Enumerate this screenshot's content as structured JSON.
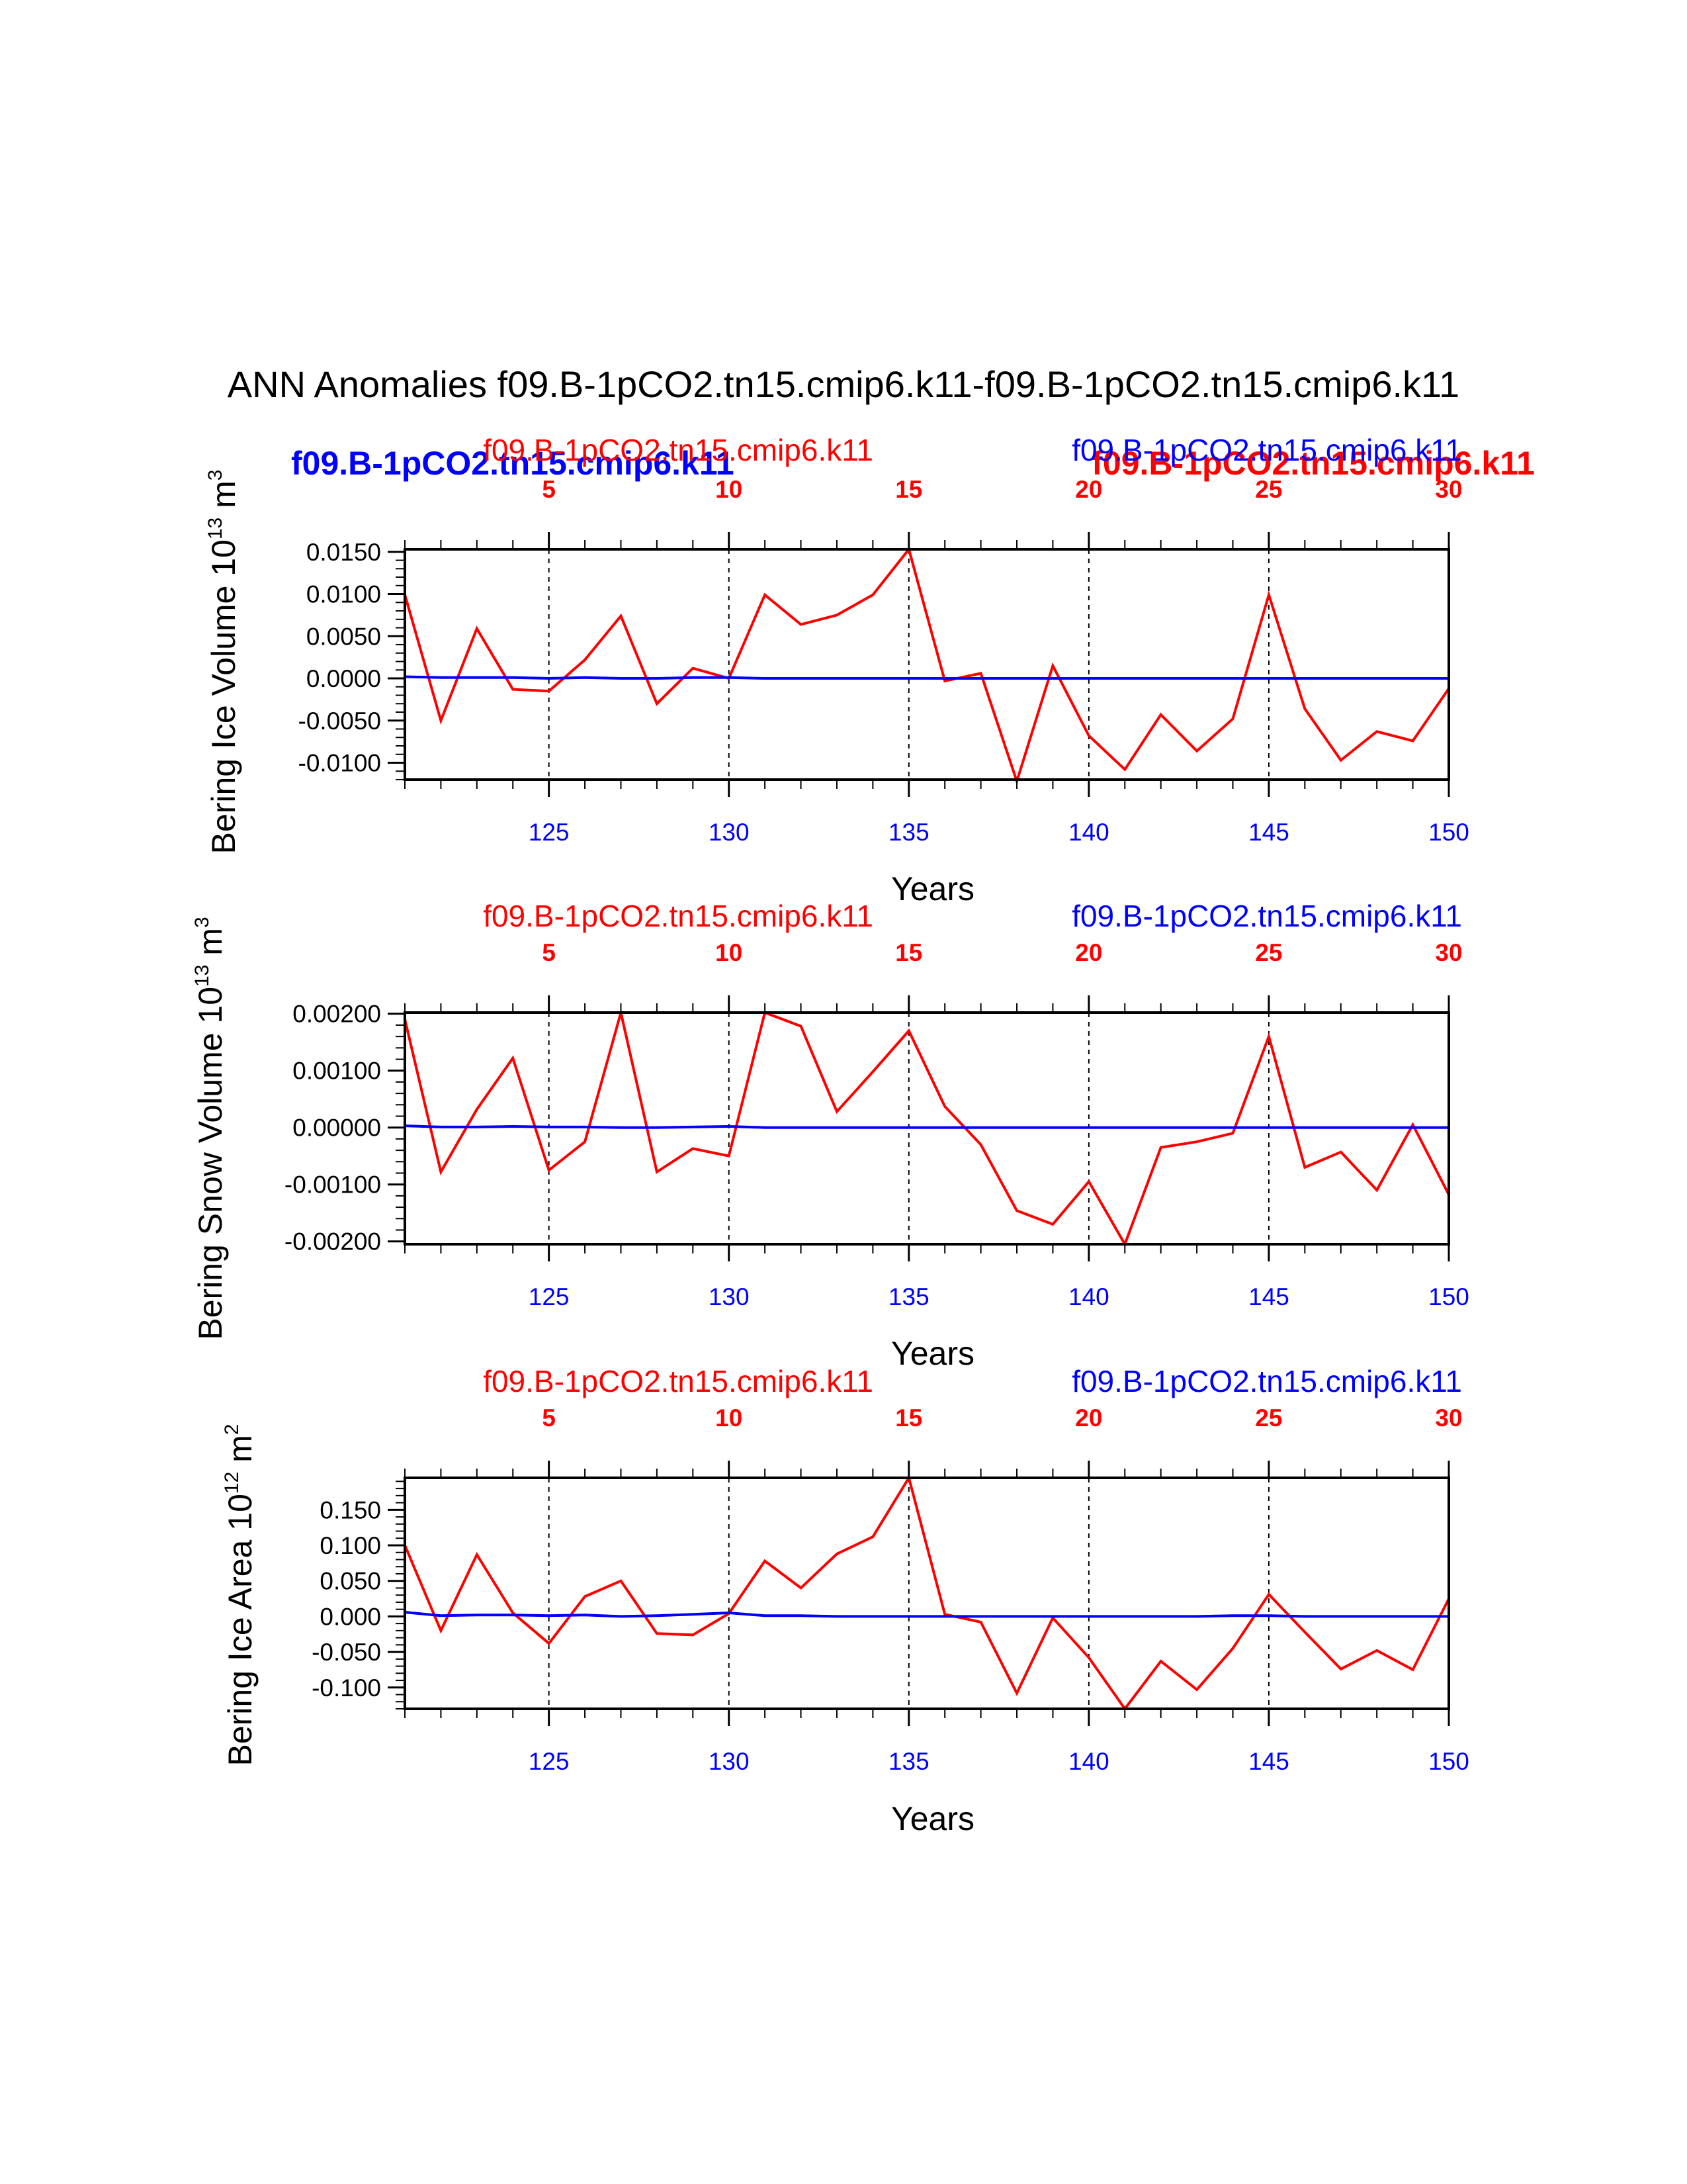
{
  "title": "ANN Anomalies f09.B-1pCO2.tn15.cmip6.k11-f09.B-1pCO2.tn15.cmip6.k11",
  "colors": {
    "red_series": "#ff0000",
    "blue_series": "#0000ff",
    "axis": "#000000"
  },
  "legend": {
    "red_label": "f09.B-1pCO2.tn15.cmip6.k11",
    "blue_label": "f09.B-1pCO2.tn15.cmip6.k11",
    "overlay_blue_label": "f09.B-1pCO2.tn15.cmip6.k11",
    "overlay_red_label": "f09.B-1pCO2.tn15.cmip6.k11"
  },
  "chart_data": [
    {
      "type": "line",
      "title": "",
      "ylabel": "Bering Ice Volume 10",
      "ylabel_exponent": "13",
      "ylabel_unit": "m",
      "ylabel_unit_exponent": "3",
      "xlabel": "Years",
      "xlim": [
        121,
        150
      ],
      "ylim": [
        -0.012,
        0.0153
      ],
      "yticks": [
        0.015,
        0.01,
        0.005,
        0.0,
        -0.005,
        -0.01
      ],
      "ytick_labels": [
        "0.0150",
        "0.0100",
        "0.0050",
        "0.0000",
        "-0.0050",
        "-0.0100"
      ],
      "yminor": 0.001,
      "xticks": [
        125,
        130,
        135,
        140,
        145,
        150
      ],
      "xtick_labels": [
        "125",
        "130",
        "135",
        "140",
        "145",
        "150"
      ],
      "top_ticks": [
        125,
        130,
        135,
        140,
        145,
        150
      ],
      "top_tick_labels": [
        "5",
        "10",
        "15",
        "20",
        "25",
        "30"
      ],
      "vlines": [
        125,
        130,
        135,
        140,
        145
      ],
      "x": [
        121,
        122,
        123,
        124,
        125,
        126,
        127,
        128,
        129,
        130,
        131,
        132,
        133,
        134,
        135,
        136,
        137,
        138,
        139,
        140,
        141,
        142,
        143,
        144,
        145,
        146,
        147,
        148,
        149,
        150
      ],
      "series": [
        {
          "name": "f09.B-1pCO2.tn15.cmip6.k11",
          "color": "#ff0000",
          "values": [
            0.0099,
            -0.005,
            0.0059,
            -0.0013,
            -0.0015,
            0.0022,
            0.0074,
            -0.003,
            0.0012,
            0.0,
            0.0099,
            0.0064,
            0.0075,
            0.0099,
            0.0153,
            -0.0003,
            0.0006,
            -0.0122,
            0.0015,
            -0.0068,
            -0.0108,
            -0.0043,
            -0.0086,
            -0.0048,
            0.0099,
            -0.0036,
            -0.0097,
            -0.0063,
            -0.0074,
            -0.0012
          ]
        },
        {
          "name": "f09.B-1pCO2.tn15.cmip6.k11",
          "color": "#0000ff",
          "values": [
            0.0002,
            0.0001,
            0.0001,
            0.0001,
            0.0,
            0.0001,
            0.0,
            0.0,
            0.0001,
            0.0001,
            0.0,
            0.0,
            0.0,
            0.0,
            0.0,
            0.0,
            0.0,
            0.0,
            0.0,
            0.0,
            0.0,
            0.0,
            0.0,
            0.0,
            0.0,
            0.0,
            0.0,
            0.0,
            0.0,
            0.0
          ]
        }
      ]
    },
    {
      "type": "line",
      "title": "",
      "ylabel": "Bering Snow Volume 10",
      "ylabel_exponent": "13",
      "ylabel_unit": "m",
      "ylabel_unit_exponent": "3",
      "xlabel": "Years",
      "xlim": [
        121,
        150
      ],
      "ylim": [
        -0.00205,
        0.00202
      ],
      "yticks": [
        0.002,
        0.001,
        0.0,
        -0.001,
        -0.002
      ],
      "ytick_labels": [
        "0.00200",
        "0.00100",
        "0.00000",
        "-0.00100",
        "-0.00200"
      ],
      "yminor": 0.0002,
      "xticks": [
        125,
        130,
        135,
        140,
        145,
        150
      ],
      "xtick_labels": [
        "125",
        "130",
        "135",
        "140",
        "145",
        "150"
      ],
      "top_ticks": [
        125,
        130,
        135,
        140,
        145,
        150
      ],
      "top_tick_labels": [
        "5",
        "10",
        "15",
        "20",
        "25",
        "30"
      ],
      "vlines": [
        125,
        130,
        135,
        140,
        145
      ],
      "x": [
        121,
        122,
        123,
        124,
        125,
        126,
        127,
        128,
        129,
        130,
        131,
        132,
        133,
        134,
        135,
        136,
        137,
        138,
        139,
        140,
        141,
        142,
        143,
        144,
        145,
        146,
        147,
        148,
        149,
        150
      ],
      "series": [
        {
          "name": "f09.B-1pCO2.tn15.cmip6.k11",
          "color": "#ff0000",
          "values": [
            0.0019,
            -0.00078,
            0.00032,
            0.00122,
            -0.00075,
            -0.00025,
            0.00202,
            -0.00078,
            -0.00037,
            -0.0005,
            0.00202,
            0.00178,
            0.00028,
            0.00098,
            0.0017,
            0.00037,
            -0.0003,
            -0.00146,
            -0.0017,
            -0.00095,
            -0.00205,
            -0.00035,
            -0.00025,
            -0.0001,
            0.0016,
            -0.0007,
            -0.00043,
            -0.0011,
            5e-05,
            -0.00118
          ]
        },
        {
          "name": "f09.B-1pCO2.tn15.cmip6.k11",
          "color": "#0000ff",
          "values": [
            3e-05,
            1e-05,
            1e-05,
            2e-05,
            1e-05,
            1e-05,
            0.0,
            0.0,
            1e-05,
            2e-05,
            0.0,
            0.0,
            0.0,
            0.0,
            0.0,
            0.0,
            0.0,
            0.0,
            0.0,
            0.0,
            0.0,
            0.0,
            0.0,
            0.0,
            0.0,
            0.0,
            0.0,
            0.0,
            0.0,
            0.0
          ]
        }
      ]
    },
    {
      "type": "line",
      "title": "",
      "ylabel": "Bering Ice Area 10",
      "ylabel_exponent": "12",
      "ylabel_unit": "m",
      "ylabel_unit_exponent": "2",
      "xlabel": "Years",
      "xlim": [
        121,
        150
      ],
      "ylim": [
        -0.13,
        0.195
      ],
      "yticks": [
        0.15,
        0.1,
        0.05,
        0.0,
        -0.05,
        -0.1
      ],
      "ytick_labels": [
        "0.150",
        "0.100",
        "0.050",
        "0.000",
        "-0.050",
        "-0.100"
      ],
      "yminor": 0.01,
      "xticks": [
        125,
        130,
        135,
        140,
        145,
        150
      ],
      "xtick_labels": [
        "125",
        "130",
        "135",
        "140",
        "145",
        "150"
      ],
      "top_ticks": [
        125,
        130,
        135,
        140,
        145,
        150
      ],
      "top_tick_labels": [
        "5",
        "10",
        "15",
        "20",
        "25",
        "30"
      ],
      "vlines": [
        125,
        130,
        135,
        140,
        145
      ],
      "x": [
        121,
        122,
        123,
        124,
        125,
        126,
        127,
        128,
        129,
        130,
        131,
        132,
        133,
        134,
        135,
        136,
        137,
        138,
        139,
        140,
        141,
        142,
        143,
        144,
        145,
        146,
        147,
        148,
        149,
        150
      ],
      "series": [
        {
          "name": "f09.B-1pCO2.tn15.cmip6.k11",
          "color": "#ff0000",
          "values": [
            0.1,
            -0.02,
            0.087,
            0.005,
            -0.038,
            0.028,
            0.05,
            -0.024,
            -0.026,
            0.004,
            0.078,
            0.04,
            0.088,
            0.112,
            0.195,
            0.003,
            -0.008,
            -0.108,
            -0.002,
            -0.058,
            -0.13,
            -0.063,
            -0.103,
            -0.045,
            0.031,
            -0.022,
            -0.074,
            -0.048,
            -0.075,
            0.025
          ]
        },
        {
          "name": "f09.B-1pCO2.tn15.cmip6.k11",
          "color": "#0000ff",
          "values": [
            0.006,
            0.001,
            0.002,
            0.002,
            0.001,
            0.002,
            0.0,
            0.001,
            0.003,
            0.005,
            0.001,
            0.001,
            0.0,
            0.0,
            0.0,
            0.0,
            0.0,
            0.0,
            0.0,
            0.0,
            0.0,
            0.0,
            0.0,
            0.001,
            0.001,
            0.0,
            0.0,
            0.0,
            0.0,
            0.0
          ]
        }
      ]
    }
  ]
}
